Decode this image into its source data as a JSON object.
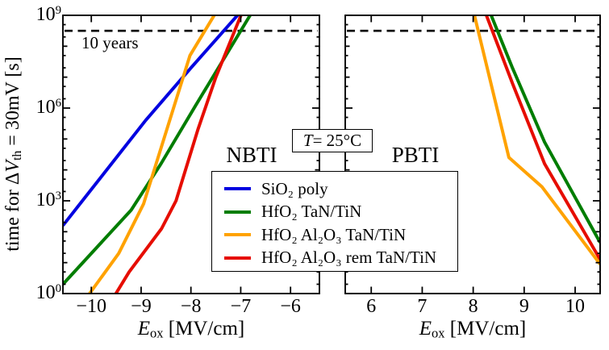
{
  "figure": {
    "y_axis_label": {
      "pre": "time for Δ",
      "var": "V",
      "sub": "th",
      "post": " = 30mV [s]"
    },
    "x_axis_label": {
      "var": "E",
      "sub": "ox",
      "post": " [MV/cm]"
    },
    "temp_annotation": {
      "var": "T",
      "post": " = 25°C"
    }
  },
  "chart_data": {
    "type": "line",
    "y_scale": "log",
    "ylabel": "time for dVth = 30mV [s]",
    "xlabel": "Eox [MV/cm]",
    "y_log_range": [
      0,
      9
    ],
    "y_ticks": [
      {
        "log": 0,
        "base": "10",
        "exp": "0"
      },
      {
        "log": 3,
        "base": "10",
        "exp": "3"
      },
      {
        "log": 6,
        "base": "10",
        "exp": "6"
      },
      {
        "log": 9,
        "base": "10",
        "exp": "9"
      }
    ],
    "dashed_reference": {
      "label": "10 years",
      "log_value": 8.5
    },
    "panels": [
      {
        "id": "nbti",
        "title": "NBTI",
        "x_range": [
          -10.57,
          -5.42
        ],
        "x_ticks": [
          {
            "v": -10,
            "label": "−10"
          },
          {
            "v": -9,
            "label": "−9"
          },
          {
            "v": -8,
            "label": "−8"
          },
          {
            "v": -7,
            "label": "−7"
          },
          {
            "v": -6,
            "label": "−6"
          }
        ],
        "series": [
          {
            "key": "sio2-poly",
            "name": "SiO₂ poly",
            "color": "#0000e0",
            "points": [
              [
                -10.57,
                2.2
              ],
              [
                -8.91,
                5.6
              ],
              [
                -8.0,
                7.3
              ],
              [
                -6.9,
                9.3
              ]
            ]
          },
          {
            "key": "hfo2-tan-tin",
            "name": "HfO₂ TaN/TiN",
            "color": "#007d00",
            "points": [
              [
                -10.57,
                0.3
              ],
              [
                -9.2,
                2.7
              ],
              [
                -8.6,
                4.2
              ],
              [
                -7.9,
                6.1
              ],
              [
                -6.7,
                9.3
              ]
            ]
          },
          {
            "key": "hfo2-al2o3-tan-tin",
            "name": "HfO₂ Al₂O₃ TaN/TiN",
            "color": "#ffa200",
            "points": [
              [
                -10.08,
                -0.1
              ],
              [
                -9.45,
                1.3
              ],
              [
                -8.95,
                2.9
              ],
              [
                -8.02,
                7.7
              ],
              [
                -7.42,
                9.3
              ]
            ]
          },
          {
            "key": "hfo2-al2o3-rem-tan-tin",
            "name": "HfO₂ Al₂O₃ rem TaN/TiN",
            "color": "#e60d00",
            "points": [
              [
                -9.62,
                -0.3
              ],
              [
                -9.24,
                0.7
              ],
              [
                -8.59,
                2.1
              ],
              [
                -8.3,
                3.0
              ],
              [
                -7.86,
                5.3
              ],
              [
                -7.5,
                7.0
              ],
              [
                -6.92,
                9.3
              ]
            ]
          }
        ]
      },
      {
        "id": "pbti",
        "title": "PBTI",
        "x_range": [
          5.49,
          10.49
        ],
        "x_ticks": [
          {
            "v": 6,
            "label": "6"
          },
          {
            "v": 7,
            "label": "7"
          },
          {
            "v": 8,
            "label": "8"
          },
          {
            "v": 9,
            "label": "9"
          },
          {
            "v": 10,
            "label": "10"
          }
        ],
        "series": [
          {
            "key": "hfo2-tan-tin",
            "name": "HfO₂ TaN/TiN",
            "color": "#007d00",
            "points": [
              [
                8.28,
                9.3
              ],
              [
                8.77,
                7.3
              ],
              [
                9.4,
                4.9
              ],
              [
                10.49,
                1.65
              ]
            ]
          },
          {
            "key": "hfo2-al2o3-rem-tan-tin",
            "name": "HfO₂ Al₂O₃ rem TaN/TiN",
            "color": "#e60d00",
            "points": [
              [
                8.19,
                9.3
              ],
              [
                8.77,
                6.8
              ],
              [
                9.4,
                4.2
              ],
              [
                10.49,
                1.1
              ]
            ]
          },
          {
            "key": "hfo2-al2o3-tan-tin",
            "name": "HfO₂ Al₂O₃ TaN/TiN",
            "color": "#ffa200",
            "points": [
              [
                7.98,
                9.3
              ],
              [
                8.7,
                4.4
              ],
              [
                9.35,
                3.45
              ],
              [
                10.49,
                0.95
              ]
            ]
          }
        ]
      }
    ],
    "legend": [
      {
        "key": "sio2-poly",
        "label": "SiO₂ poly",
        "color": "#0000e0"
      },
      {
        "key": "hfo2-tan-tin",
        "label": "HfO₂ TaN/TiN",
        "color": "#007d00"
      },
      {
        "key": "hfo2-al2o3-tan-tin",
        "label": "HfO₂ Al₂O₃ TaN/TiN",
        "color": "#ffa200"
      },
      {
        "key": "hfo2-al2o3-rem-tan-tin",
        "label": "HfO₂ Al₂O₃ rem TaN/TiN",
        "color": "#e60d00"
      }
    ]
  }
}
